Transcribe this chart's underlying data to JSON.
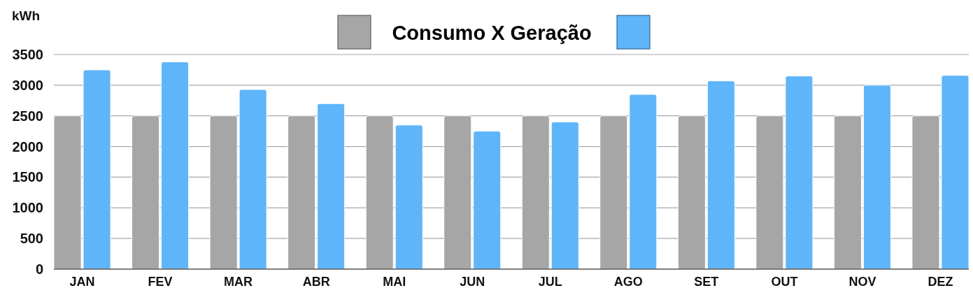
{
  "chart_data": {
    "type": "bar",
    "title": "Consumo X Geração",
    "ylabel": "kWh",
    "categories": [
      "JAN",
      "FEV",
      "MAR",
      "ABR",
      "MAI",
      "JUN",
      "JUL",
      "AGO",
      "SET",
      "OUT",
      "NOV",
      "DEZ"
    ],
    "series": [
      {
        "color": "#a6a6a6",
        "values": [
          2500,
          2500,
          2500,
          2500,
          2500,
          2500,
          2500,
          2500,
          2500,
          2500,
          2500,
          2500
        ]
      },
      {
        "color": "#5eb5fa",
        "values": [
          3250,
          3380,
          2930,
          2700,
          2350,
          2250,
          2400,
          2850,
          3070,
          3150,
          3000,
          3160
        ]
      }
    ],
    "ylim": [
      0,
      3500
    ],
    "yticks": [
      0,
      500,
      1000,
      1500,
      2000,
      2500,
      3000,
      3500
    ],
    "grid": "y"
  }
}
